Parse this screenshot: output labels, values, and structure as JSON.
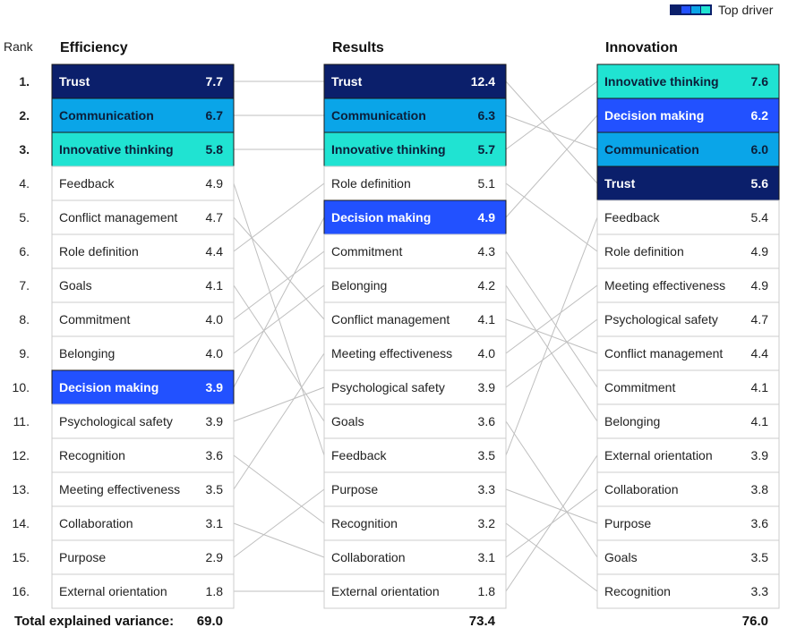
{
  "legend": {
    "label": "Top driver",
    "colors": [
      "#0b1f6b",
      "#2251ff",
      "#0aa5e8",
      "#20e3d2"
    ]
  },
  "rank_header": "Rank",
  "ranks": [
    "1.",
    "2.",
    "3.",
    "4.",
    "5.",
    "6.",
    "7.",
    "8.",
    "9.",
    "10.",
    "11.",
    "12.",
    "13.",
    "14.",
    "15.",
    "16."
  ],
  "footer": {
    "label": "Total explained variance:"
  },
  "colors": {
    "Trust": "#0b1f6b",
    "Decision making": "#2251ff",
    "Communication": "#0aa5e8",
    "Innovative thinking": "#20e3d2",
    "Trust_text": "#ffffff",
    "Decision making_text": "#ffffff",
    "Communication_text": "#0b1f3a",
    "Innovative thinking_text": "#0b1f3a"
  },
  "chart_data": {
    "type": "table",
    "top_drivers": [
      "Trust",
      "Communication",
      "Innovative thinking",
      "Decision making"
    ],
    "columns": [
      {
        "title": "Efficiency",
        "total": "69.0",
        "rows": [
          {
            "label": "Trust",
            "value": "7.7"
          },
          {
            "label": "Communication",
            "value": "6.7"
          },
          {
            "label": "Innovative thinking",
            "value": "5.8"
          },
          {
            "label": "Feedback",
            "value": "4.9"
          },
          {
            "label": "Conflict management",
            "value": "4.7"
          },
          {
            "label": "Role definition",
            "value": "4.4"
          },
          {
            "label": "Goals",
            "value": "4.1"
          },
          {
            "label": "Commitment",
            "value": "4.0"
          },
          {
            "label": "Belonging",
            "value": "4.0"
          },
          {
            "label": "Decision making",
            "value": "3.9"
          },
          {
            "label": "Psychological safety",
            "value": "3.9"
          },
          {
            "label": "Recognition",
            "value": "3.6"
          },
          {
            "label": "Meeting effectiveness",
            "value": "3.5"
          },
          {
            "label": "Collaboration",
            "value": "3.1"
          },
          {
            "label": "Purpose",
            "value": "2.9"
          },
          {
            "label": "External orientation",
            "value": "1.8"
          }
        ]
      },
      {
        "title": "Results",
        "total": "73.4",
        "rows": [
          {
            "label": "Trust",
            "value": "12.4"
          },
          {
            "label": "Communication",
            "value": "6.3"
          },
          {
            "label": "Innovative thinking",
            "value": "5.7"
          },
          {
            "label": "Role definition",
            "value": "5.1"
          },
          {
            "label": "Decision making",
            "value": "4.9"
          },
          {
            "label": "Commitment",
            "value": "4.3"
          },
          {
            "label": "Belonging",
            "value": "4.2"
          },
          {
            "label": "Conflict management",
            "value": "4.1"
          },
          {
            "label": "Meeting effectiveness",
            "value": "4.0"
          },
          {
            "label": "Psychological safety",
            "value": "3.9"
          },
          {
            "label": "Goals",
            "value": "3.6"
          },
          {
            "label": "Feedback",
            "value": "3.5"
          },
          {
            "label": "Purpose",
            "value": "3.3"
          },
          {
            "label": "Recognition",
            "value": "3.2"
          },
          {
            "label": "Collaboration",
            "value": "3.1"
          },
          {
            "label": "External orientation",
            "value": "1.8"
          }
        ]
      },
      {
        "title": "Innovation",
        "total": "76.0",
        "rows": [
          {
            "label": "Innovative thinking",
            "value": "7.6"
          },
          {
            "label": "Decision making",
            "value": "6.2"
          },
          {
            "label": "Communication",
            "value": "6.0"
          },
          {
            "label": "Trust",
            "value": "5.6"
          },
          {
            "label": "Feedback",
            "value": "5.4"
          },
          {
            "label": "Role definition",
            "value": "4.9"
          },
          {
            "label": "Meeting effectiveness",
            "value": "4.9"
          },
          {
            "label": "Psychological safety",
            "value": "4.7"
          },
          {
            "label": "Conflict management",
            "value": "4.4"
          },
          {
            "label": "Commitment",
            "value": "4.1"
          },
          {
            "label": "Belonging",
            "value": "4.1"
          },
          {
            "label": "External orientation",
            "value": "3.9"
          },
          {
            "label": "Collaboration",
            "value": "3.8"
          },
          {
            "label": "Purpose",
            "value": "3.6"
          },
          {
            "label": "Goals",
            "value": "3.5"
          },
          {
            "label": "Recognition",
            "value": "3.3"
          }
        ]
      }
    ]
  }
}
